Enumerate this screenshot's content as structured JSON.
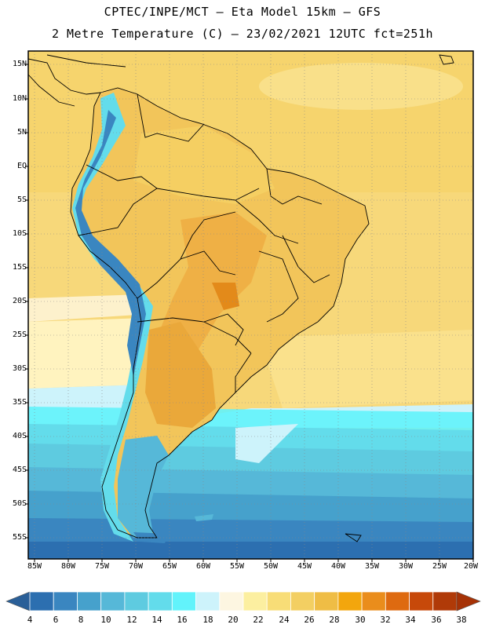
{
  "header": {
    "line1": "CPTEC/INPE/MCT –  Eta Model 15km – GFS",
    "line2": "2 Metre Temperature (C) – 23/02/2021 12UTC fct=251h"
  },
  "axes": {
    "lat_labels": [
      "15N",
      "10N",
      "5N",
      "EQ",
      "5S",
      "10S",
      "15S",
      "20S",
      "25S",
      "30S",
      "35S",
      "40S",
      "45S",
      "50S",
      "55S"
    ],
    "lon_labels": [
      "85W",
      "80W",
      "75W",
      "70W",
      "65W",
      "60W",
      "55W",
      "50W",
      "45W",
      "40W",
      "35W",
      "30W",
      "25W",
      "20W"
    ]
  },
  "colorbar": {
    "ticks": [
      "4",
      "6",
      "8",
      "10",
      "12",
      "14",
      "16",
      "18",
      "20",
      "22",
      "24",
      "26",
      "28",
      "30",
      "32",
      "34",
      "36",
      "38"
    ],
    "colors": [
      "#2c6fb0",
      "#3a86c0",
      "#46a1cc",
      "#56b8d8",
      "#5ecbe0",
      "#63dceb",
      "#62f3fb",
      "#cdf3fb",
      "#fdf6e1",
      "#fcefa0",
      "#f8dd77",
      "#f3cf62",
      "#efbd45",
      "#f3a60d",
      "#ea8d1c",
      "#de6a10",
      "#c7490a",
      "#b03a08"
    ]
  }
}
